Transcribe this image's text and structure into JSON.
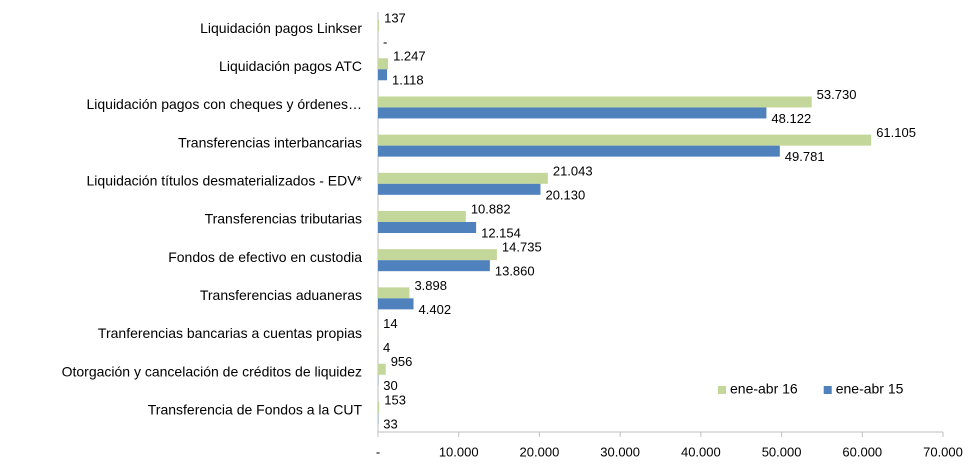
{
  "chart_data": {
    "type": "bar",
    "orientation": "horizontal",
    "categories": [
      "Liquidación pagos Linkser",
      "Liquidación pagos ATC",
      "Liquidación pagos con cheques y órdenes…",
      "Transferencias interbancarias",
      "Liquidación títulos desmaterializados - EDV*",
      "Transferencias tributarias",
      "Fondos de efectivo en custodia",
      "Transferencias aduaneras",
      "Tranferencias bancarias a cuentas propias",
      "Otorgación y cancelación de créditos de liquidez",
      "Transferencia de Fondos a la CUT"
    ],
    "series": [
      {
        "name": "ene-abr 16",
        "color": "#c4d79b",
        "label_color": "#77933c",
        "values": [
          137,
          1247,
          53730,
          61105,
          21043,
          10882,
          14735,
          3898,
          14,
          956,
          153
        ],
        "value_labels": [
          "137",
          "1.247",
          "53.730",
          "61.105",
          "21.043",
          "10.882",
          "14.735",
          "3.898",
          "14",
          "956",
          "153"
        ]
      },
      {
        "name": "ene-abr 15",
        "color": "#4f81bd",
        "label_color": "#1f497d",
        "values": [
          0,
          1118,
          48122,
          49781,
          20130,
          12154,
          13860,
          4402,
          4,
          30,
          33
        ],
        "value_labels": [
          "-",
          "1.118",
          "48.122",
          "49.781",
          "20.130",
          "12.154",
          "13.860",
          "4.402",
          "4",
          "30",
          "33"
        ]
      }
    ],
    "xlim": [
      0,
      70000
    ],
    "xticks": [
      {
        "value": 0,
        "label": "-"
      },
      {
        "value": 10000,
        "label": "10.000"
      },
      {
        "value": 20000,
        "label": "20.000"
      },
      {
        "value": 30000,
        "label": "30.000"
      },
      {
        "value": 40000,
        "label": "40.000"
      },
      {
        "value": 50000,
        "label": "50.000"
      },
      {
        "value": 60000,
        "label": "60.000"
      },
      {
        "value": 70000,
        "label": "70.000"
      }
    ],
    "grid": false,
    "legend": "lower-right"
  }
}
